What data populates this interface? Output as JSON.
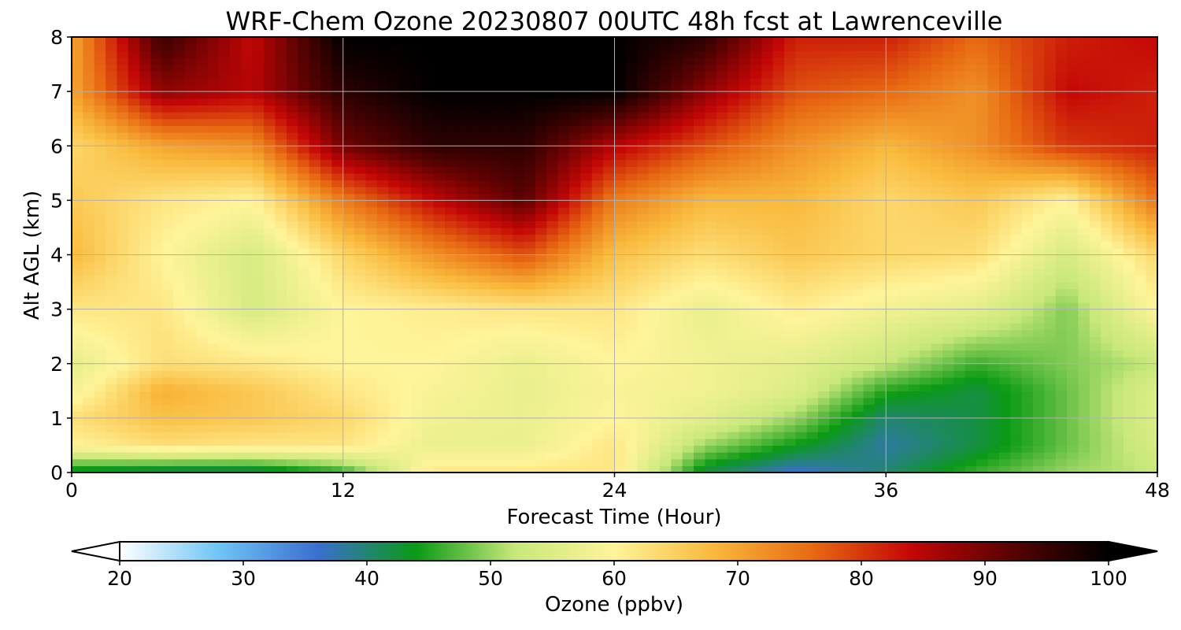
{
  "chart_data": {
    "type": "heatmap",
    "title": "WRF-Chem Ozone  20230807 00UTC 48h fcst at Lawrenceville",
    "xlabel": "Forecast Time (Hour)",
    "ylabel": "Alt AGL (km)",
    "xlim": [
      0,
      48
    ],
    "ylim": [
      0,
      8
    ],
    "x_ticks": [
      "0",
      "12",
      "24",
      "36",
      "48"
    ],
    "y_ticks": [
      "0",
      "1",
      "2",
      "3",
      "4",
      "5",
      "6",
      "7",
      "8"
    ],
    "grid": true,
    "colorbar": {
      "label": "Ozone  (ppbv)",
      "range": [
        20,
        100
      ],
      "ticks": [
        "20",
        "30",
        "40",
        "50",
        "60",
        "70",
        "80",
        "90",
        "100"
      ],
      "extend": "both",
      "colors": [
        "#ffffff",
        "#6ec5f5",
        "#3a6fd0",
        "#0a9a14",
        "#c8e87a",
        "#fff49a",
        "#f9b93c",
        "#e86a12",
        "#c40606",
        "#5a0202",
        "#000000"
      ]
    },
    "x": [
      0,
      4,
      8,
      12,
      16,
      20,
      24,
      28,
      32,
      36,
      40,
      44,
      48
    ],
    "y": [
      0,
      0.5,
      1,
      1.5,
      2,
      3,
      4,
      5,
      6,
      7,
      8
    ],
    "values": [
      [
        42,
        40,
        40,
        45,
        62,
        62,
        62,
        42,
        36,
        40,
        46,
        50,
        52
      ],
      [
        60,
        63,
        62,
        62,
        57,
        57,
        62,
        50,
        44,
        38,
        42,
        48,
        54
      ],
      [
        63,
        67,
        66,
        64,
        58,
        57,
        60,
        56,
        50,
        40,
        42,
        48,
        55
      ],
      [
        58,
        69,
        66,
        62,
        59,
        57,
        59,
        58,
        55,
        45,
        42,
        48,
        55
      ],
      [
        56,
        63,
        62,
        60,
        60,
        57,
        60,
        58,
        56,
        52,
        46,
        49,
        52
      ],
      [
        62,
        62,
        54,
        60,
        61,
        62,
        62,
        57,
        61,
        58,
        56,
        49,
        60
      ],
      [
        68,
        60,
        54,
        64,
        72,
        78,
        67,
        63,
        66,
        64,
        63,
        54,
        64
      ],
      [
        66,
        62,
        60,
        74,
        84,
        92,
        74,
        68,
        68,
        64,
        66,
        60,
        75
      ],
      [
        64,
        70,
        72,
        90,
        96,
        96,
        85,
        78,
        72,
        68,
        72,
        80,
        82
      ],
      [
        70,
        88,
        85,
        96,
        100,
        100,
        100,
        88,
        78,
        76,
        72,
        84,
        82
      ],
      [
        70,
        95,
        84,
        100,
        100,
        100,
        100,
        96,
        82,
        82,
        76,
        82,
        84
      ]
    ]
  }
}
